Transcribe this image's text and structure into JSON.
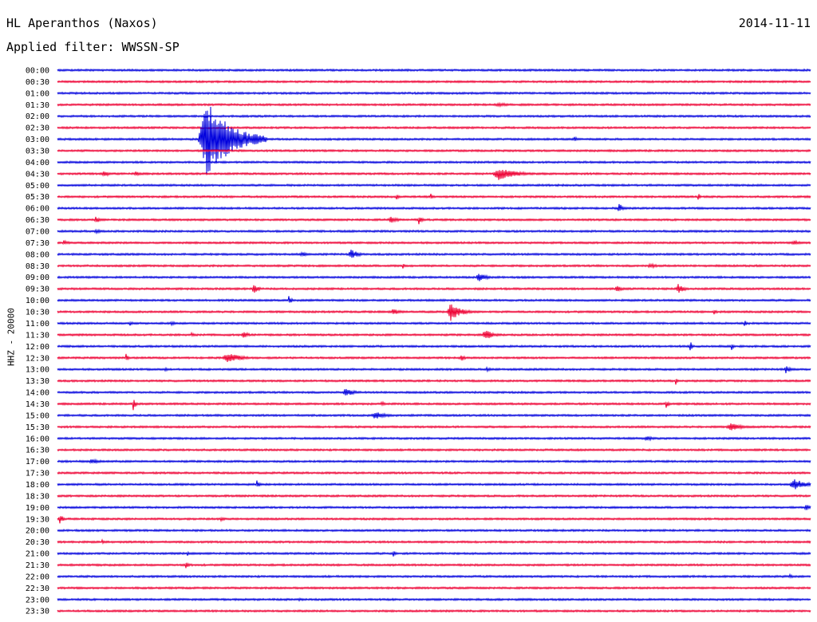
{
  "header": {
    "station": "HL Aperanthos (Naxos)",
    "date": "2014-11-11",
    "filter": "Applied filter: WWSSN-SP"
  },
  "chart_data": {
    "type": "line",
    "ylabel": "HHZ - 20000",
    "colors": [
      "#0000dd",
      "#ee0033"
    ],
    "rows": [
      {
        "label": "00:00",
        "events": []
      },
      {
        "label": "00:30",
        "events": []
      },
      {
        "label": "01:00",
        "events": []
      },
      {
        "label": "01:30",
        "events": [
          {
            "x": 625,
            "amp": 3,
            "w": 12
          }
        ]
      },
      {
        "label": "02:00",
        "events": []
      },
      {
        "label": "02:30",
        "events": []
      },
      {
        "label": "03:00",
        "events": [
          {
            "x": 260,
            "amp": 48,
            "w": 30
          },
          {
            "x": 720,
            "amp": 5,
            "w": 3
          }
        ]
      },
      {
        "label": "03:30",
        "events": []
      },
      {
        "label": "04:00",
        "events": []
      },
      {
        "label": "04:30",
        "events": [
          {
            "x": 130,
            "amp": 4,
            "w": 8
          },
          {
            "x": 170,
            "amp": 3,
            "w": 6
          },
          {
            "x": 625,
            "amp": 8,
            "w": 22
          }
        ]
      },
      {
        "label": "05:00",
        "events": []
      },
      {
        "label": "05:30",
        "events": [
          {
            "x": 497,
            "amp": 5,
            "w": 3
          },
          {
            "x": 540,
            "amp": 4,
            "w": 3
          },
          {
            "x": 875,
            "amp": 5,
            "w": 3
          }
        ]
      },
      {
        "label": "06:00",
        "events": [
          {
            "x": 776,
            "amp": 6,
            "w": 6
          }
        ]
      },
      {
        "label": "06:30",
        "events": [
          {
            "x": 120,
            "amp": 6,
            "w": 4
          },
          {
            "x": 490,
            "amp": 4,
            "w": 10
          },
          {
            "x": 525,
            "amp": 6,
            "w": 4
          }
        ]
      },
      {
        "label": "07:00",
        "events": [
          {
            "x": 120,
            "amp": 3,
            "w": 8
          }
        ]
      },
      {
        "label": "07:30",
        "events": [
          {
            "x": 80,
            "amp": 3,
            "w": 8
          },
          {
            "x": 995,
            "amp": 3,
            "w": 10
          }
        ]
      },
      {
        "label": "08:00",
        "events": [
          {
            "x": 378,
            "amp": 3,
            "w": 10
          },
          {
            "x": 440,
            "amp": 6,
            "w": 10
          }
        ]
      },
      {
        "label": "08:30",
        "events": [
          {
            "x": 505,
            "amp": 4,
            "w": 3
          },
          {
            "x": 815,
            "amp": 3,
            "w": 12
          }
        ]
      },
      {
        "label": "09:00",
        "events": [
          {
            "x": 600,
            "amp": 6,
            "w": 10
          }
        ]
      },
      {
        "label": "09:30",
        "events": [
          {
            "x": 318,
            "amp": 6,
            "w": 6
          },
          {
            "x": 773,
            "amp": 4,
            "w": 8
          },
          {
            "x": 850,
            "amp": 6,
            "w": 8
          }
        ]
      },
      {
        "label": "10:00",
        "events": [
          {
            "x": 362,
            "amp": 7,
            "w": 3
          }
        ]
      },
      {
        "label": "10:30",
        "events": [
          {
            "x": 493,
            "amp": 4,
            "w": 10
          },
          {
            "x": 565,
            "amp": 12,
            "w": 12
          },
          {
            "x": 895,
            "amp": 5,
            "w": 3
          }
        ]
      },
      {
        "label": "11:00",
        "events": [
          {
            "x": 163,
            "amp": 3,
            "w": 4
          },
          {
            "x": 215,
            "amp": 3,
            "w": 6
          },
          {
            "x": 933,
            "amp": 5,
            "w": 3
          }
        ]
      },
      {
        "label": "11:30",
        "events": [
          {
            "x": 240,
            "amp": 3,
            "w": 4
          },
          {
            "x": 305,
            "amp": 4,
            "w": 8
          },
          {
            "x": 608,
            "amp": 7,
            "w": 10
          }
        ]
      },
      {
        "label": "12:00",
        "events": [
          {
            "x": 865,
            "amp": 7,
            "w": 3
          },
          {
            "x": 917,
            "amp": 5,
            "w": 3
          }
        ]
      },
      {
        "label": "12:30",
        "events": [
          {
            "x": 158,
            "amp": 5,
            "w": 3
          },
          {
            "x": 285,
            "amp": 6,
            "w": 20
          },
          {
            "x": 578,
            "amp": 4,
            "w": 6
          }
        ]
      },
      {
        "label": "13:00",
        "events": [
          {
            "x": 207,
            "amp": 3,
            "w": 6
          },
          {
            "x": 610,
            "amp": 3,
            "w": 6
          },
          {
            "x": 985,
            "amp": 5,
            "w": 6
          }
        ]
      },
      {
        "label": "13:30",
        "events": [
          {
            "x": 847,
            "amp": 5,
            "w": 3
          }
        ]
      },
      {
        "label": "14:00",
        "events": [
          {
            "x": 433,
            "amp": 6,
            "w": 10
          }
        ]
      },
      {
        "label": "14:30",
        "events": [
          {
            "x": 167,
            "amp": 9,
            "w": 3
          },
          {
            "x": 478,
            "amp": 4,
            "w": 4
          },
          {
            "x": 835,
            "amp": 5,
            "w": 4
          }
        ]
      },
      {
        "label": "15:00",
        "events": [
          {
            "x": 470,
            "amp": 5,
            "w": 14
          }
        ]
      },
      {
        "label": "15:30",
        "events": [
          {
            "x": 915,
            "amp": 5,
            "w": 16
          }
        ]
      },
      {
        "label": "16:00",
        "events": [
          {
            "x": 810,
            "amp": 4,
            "w": 8
          }
        ]
      },
      {
        "label": "16:30",
        "events": []
      },
      {
        "label": "17:00",
        "events": [
          {
            "x": 115,
            "amp": 3,
            "w": 14
          }
        ]
      },
      {
        "label": "17:30",
        "events": []
      },
      {
        "label": "18:00",
        "events": [
          {
            "x": 322,
            "amp": 5,
            "w": 4
          },
          {
            "x": 995,
            "amp": 7,
            "w": 16
          }
        ]
      },
      {
        "label": "18:30",
        "events": []
      },
      {
        "label": "19:00",
        "events": [
          {
            "x": 1010,
            "amp": 4,
            "w": 8
          }
        ]
      },
      {
        "label": "19:30",
        "events": [
          {
            "x": 75,
            "amp": 7,
            "w": 4
          },
          {
            "x": 277,
            "amp": 3,
            "w": 6
          }
        ]
      },
      {
        "label": "20:00",
        "events": []
      },
      {
        "label": "20:30",
        "events": [
          {
            "x": 128,
            "amp": 3,
            "w": 4
          }
        ]
      },
      {
        "label": "21:00",
        "events": [
          {
            "x": 235,
            "amp": 3,
            "w": 4
          },
          {
            "x": 493,
            "amp": 4,
            "w": 4
          }
        ]
      },
      {
        "label": "21:30",
        "events": [
          {
            "x": 233,
            "amp": 5,
            "w": 4
          }
        ]
      },
      {
        "label": "22:00",
        "events": [
          {
            "x": 990,
            "amp": 3,
            "w": 4
          }
        ]
      },
      {
        "label": "22:30",
        "events": []
      },
      {
        "label": "23:00",
        "events": [
          {
            "x": 375,
            "amp": 2,
            "w": 6
          }
        ]
      },
      {
        "label": "23:30",
        "events": []
      }
    ]
  }
}
